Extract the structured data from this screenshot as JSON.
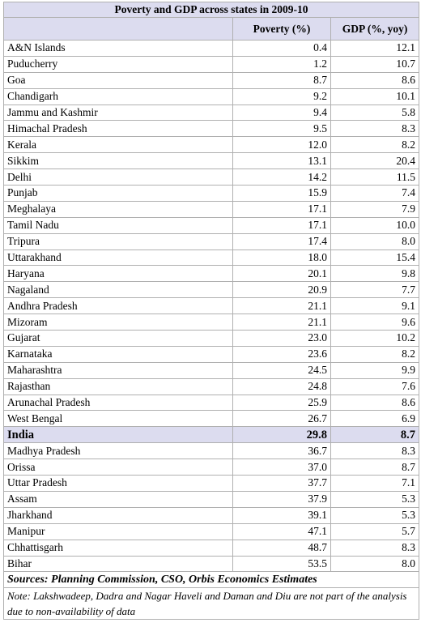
{
  "title": "Poverty and GDP across states in 2009-10",
  "table": {
    "header": [
      "",
      "Poverty (%)",
      "GDP (%, yoy)"
    ],
    "rows": [
      [
        "A&N Islands",
        "0.4",
        "12.1"
      ],
      [
        "Puducherry",
        "1.2",
        "10.7"
      ],
      [
        "Goa",
        "8.7",
        "8.6"
      ],
      [
        "Chandigarh",
        "9.2",
        "10.1"
      ],
      [
        "Jammu and Kashmir",
        "9.4",
        "5.8"
      ],
      [
        "Himachal Pradesh",
        "9.5",
        "8.3"
      ],
      [
        "Kerala",
        "12.0",
        "8.2"
      ],
      [
        "Sikkim",
        "13.1",
        "20.4"
      ],
      [
        "Delhi",
        "14.2",
        "11.5"
      ],
      [
        "Punjab",
        "15.9",
        "7.4"
      ],
      [
        "Meghalaya",
        "17.1",
        "7.9"
      ],
      [
        "Tamil Nadu",
        "17.1",
        "10.0"
      ],
      [
        "Tripura",
        "17.4",
        "8.0"
      ],
      [
        "Uttarakhand",
        "18.0",
        "15.4"
      ],
      [
        "Haryana",
        "20.1",
        "9.8"
      ],
      [
        "Nagaland",
        "20.9",
        "7.7"
      ],
      [
        "Andhra Pradesh",
        "21.1",
        "9.1"
      ],
      [
        "Mizoram",
        "21.1",
        "9.6"
      ],
      [
        "Gujarat",
        "23.0",
        "10.2"
      ],
      [
        "Karnataka",
        "23.6",
        "8.2"
      ],
      [
        "Maharashtra",
        "24.5",
        "9.9"
      ],
      [
        "Rajasthan",
        "24.8",
        "7.6"
      ],
      [
        "Arunachal Pradesh",
        "25.9",
        "8.6"
      ],
      [
        "West Bengal",
        "26.7",
        "6.9"
      ],
      [
        "India",
        "29.8",
        "8.7"
      ],
      [
        "Madhya Pradesh",
        "36.7",
        "8.3"
      ],
      [
        "Orissa",
        "37.0",
        "8.7"
      ],
      [
        "Uttar Pradesh",
        "37.7",
        "7.1"
      ],
      [
        "Assam",
        "37.9",
        "5.3"
      ],
      [
        "Jharkhand",
        "39.1",
        "5.3"
      ],
      [
        "Manipur",
        "47.1",
        "5.7"
      ],
      [
        "Chhattisgarh",
        "48.7",
        "8.3"
      ],
      [
        "Bihar",
        "53.5",
        "8.0"
      ]
    ]
  },
  "sources": "Sources: Planning Commission, CSO, Orbis Economics Estimates",
  "note": "Note: Lakshwadeep, Dadra and Nagar Haveli and Daman and Diu are not part of the analysis due to non-availability of data"
}
